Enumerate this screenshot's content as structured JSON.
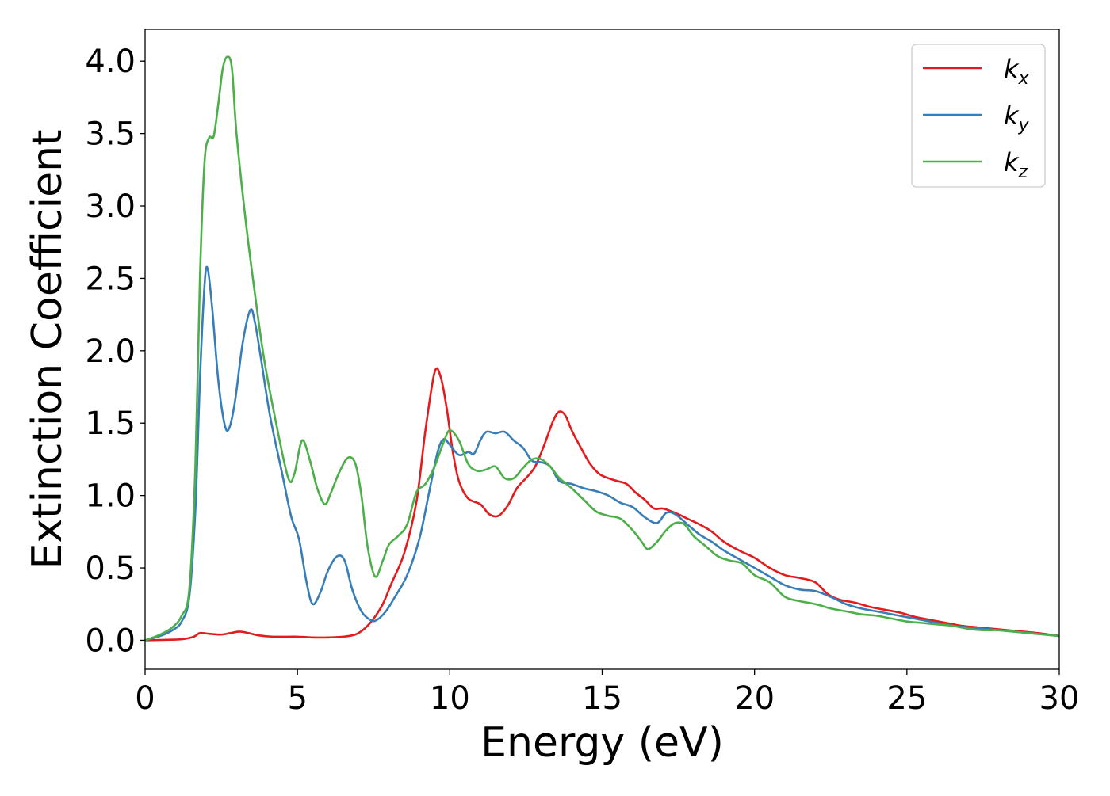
{
  "chart_data": {
    "type": "line",
    "title": "",
    "xlabel": "Energy (eV)",
    "ylabel": "Extinction Coefficient",
    "xlim": [
      0,
      30
    ],
    "ylim": [
      -0.2,
      4.22
    ],
    "xticks": [
      0,
      5,
      10,
      15,
      20,
      25,
      30
    ],
    "xtick_labels": [
      "0",
      "5",
      "10",
      "15",
      "20",
      "25",
      "30"
    ],
    "yticks": [
      0.0,
      0.5,
      1.0,
      1.5,
      2.0,
      2.5,
      3.0,
      3.5,
      4.0
    ],
    "ytick_labels": [
      "0.0",
      "0.5",
      "1.0",
      "1.5",
      "2.0",
      "2.5",
      "3.0",
      "3.5",
      "4.0"
    ],
    "grid": false,
    "legend_position": "top-right",
    "series": [
      {
        "name": "k",
        "subscript": "x",
        "color": "#e41a1c",
        "x": [
          0,
          1,
          1.3,
          1.6,
          1.8,
          2.1,
          2.5,
          2.8,
          3.1,
          3.4,
          3.7,
          4.2,
          5,
          5.5,
          6,
          6.5,
          6.9,
          7.2,
          7.5,
          7.8,
          8.1,
          8.5,
          8.9,
          9.2,
          9.5,
          9.7,
          9.9,
          10.1,
          10.3,
          10.6,
          11,
          11.3,
          11.6,
          11.9,
          12.2,
          12.5,
          12.8,
          13.1,
          13.4,
          13.6,
          13.8,
          14.0,
          14.3,
          14.6,
          14.9,
          15.2,
          15.5,
          15.8,
          16.1,
          16.4,
          16.7,
          17.0,
          17.4,
          17.8,
          18.2,
          18.6,
          19.0,
          19.5,
          20.0,
          20.5,
          21.0,
          21.5,
          22.0,
          22.4,
          22.8,
          23.3,
          23.8,
          24.3,
          24.8,
          25.3,
          25.8,
          26.3,
          26.8,
          27.3,
          27.8,
          28.3,
          28.8,
          29.3,
          30
        ],
        "y": [
          0.0,
          0.005,
          0.01,
          0.025,
          0.05,
          0.045,
          0.04,
          0.05,
          0.06,
          0.05,
          0.035,
          0.025,
          0.025,
          0.02,
          0.02,
          0.025,
          0.04,
          0.08,
          0.15,
          0.25,
          0.4,
          0.6,
          0.95,
          1.45,
          1.85,
          1.82,
          1.6,
          1.3,
          1.1,
          0.98,
          0.94,
          0.87,
          0.86,
          0.93,
          1.05,
          1.12,
          1.2,
          1.35,
          1.52,
          1.58,
          1.55,
          1.45,
          1.33,
          1.22,
          1.15,
          1.12,
          1.1,
          1.08,
          1.02,
          0.97,
          0.91,
          0.91,
          0.88,
          0.84,
          0.8,
          0.75,
          0.68,
          0.62,
          0.57,
          0.5,
          0.45,
          0.43,
          0.4,
          0.32,
          0.28,
          0.26,
          0.23,
          0.21,
          0.19,
          0.16,
          0.14,
          0.12,
          0.1,
          0.09,
          0.08,
          0.07,
          0.06,
          0.05,
          0.03
        ]
      },
      {
        "name": "k",
        "subscript": "y",
        "color": "#377eb8",
        "x": [
          0,
          0.5,
          0.9,
          1.2,
          1.45,
          1.65,
          1.8,
          1.95,
          2.05,
          2.2,
          2.4,
          2.6,
          2.75,
          2.95,
          3.2,
          3.45,
          3.6,
          3.8,
          4.1,
          4.5,
          4.8,
          5.05,
          5.3,
          5.5,
          5.75,
          6.0,
          6.3,
          6.55,
          6.8,
          7.1,
          7.4,
          7.6,
          7.9,
          8.2,
          8.6,
          9.0,
          9.3,
          9.6,
          9.8,
          10.0,
          10.3,
          10.6,
          10.8,
          11.0,
          11.2,
          11.5,
          11.8,
          12.1,
          12.4,
          12.7,
          13.0,
          13.3,
          13.6,
          14.0,
          14.4,
          14.8,
          15.2,
          15.6,
          16.0,
          16.4,
          16.8,
          17.1,
          17.4,
          17.8,
          18.2,
          18.6,
          19.0,
          19.5,
          20.0,
          20.5,
          21.0,
          21.5,
          22.0,
          22.5,
          23.0,
          23.5,
          24.0,
          24.5,
          25.0,
          25.5,
          26.0,
          26.5,
          27.0,
          27.5,
          28.0,
          28.5,
          29.0,
          29.5,
          30
        ],
        "y": [
          0.0,
          0.03,
          0.07,
          0.13,
          0.3,
          0.9,
          1.8,
          2.45,
          2.57,
          2.3,
          1.8,
          1.5,
          1.46,
          1.65,
          2.05,
          2.28,
          2.2,
          1.95,
          1.55,
          1.15,
          0.85,
          0.7,
          0.4,
          0.25,
          0.33,
          0.48,
          0.58,
          0.55,
          0.35,
          0.2,
          0.14,
          0.14,
          0.2,
          0.3,
          0.45,
          0.7,
          1.0,
          1.3,
          1.39,
          1.35,
          1.28,
          1.3,
          1.29,
          1.38,
          1.44,
          1.43,
          1.44,
          1.38,
          1.33,
          1.24,
          1.23,
          1.2,
          1.1,
          1.08,
          1.05,
          1.03,
          1.0,
          0.95,
          0.92,
          0.85,
          0.81,
          0.88,
          0.87,
          0.8,
          0.73,
          0.68,
          0.62,
          0.56,
          0.5,
          0.44,
          0.38,
          0.35,
          0.34,
          0.3,
          0.25,
          0.22,
          0.2,
          0.18,
          0.16,
          0.14,
          0.12,
          0.1,
          0.09,
          0.08,
          0.07,
          0.06,
          0.05,
          0.04,
          0.03
        ]
      },
      {
        "name": "k",
        "subscript": "z",
        "color": "#4daf4a",
        "x": [
          0,
          0.5,
          0.9,
          1.2,
          1.45,
          1.65,
          1.8,
          1.95,
          2.1,
          2.25,
          2.4,
          2.55,
          2.7,
          2.85,
          3.0,
          3.3,
          3.6,
          3.9,
          4.3,
          4.7,
          4.9,
          5.15,
          5.4,
          5.65,
          5.9,
          6.1,
          6.35,
          6.65,
          6.9,
          7.1,
          7.3,
          7.55,
          7.8,
          8.0,
          8.3,
          8.6,
          8.9,
          9.2,
          9.5,
          9.8,
          10.0,
          10.3,
          10.6,
          10.9,
          11.2,
          11.5,
          11.8,
          12.1,
          12.4,
          12.7,
          13.0,
          13.3,
          13.6,
          14.0,
          14.4,
          14.8,
          15.2,
          15.6,
          16.0,
          16.3,
          16.5,
          16.8,
          17.1,
          17.4,
          17.7,
          18.0,
          18.4,
          18.8,
          19.2,
          19.6,
          20.0,
          20.5,
          21.0,
          21.5,
          22.0,
          22.5,
          23.0,
          23.5,
          24.0,
          24.5,
          25.0,
          25.5,
          26.0,
          26.5,
          27.0,
          27.5,
          28.0,
          28.5,
          29.0,
          29.5,
          30
        ],
        "y": [
          0.0,
          0.04,
          0.09,
          0.17,
          0.35,
          1.2,
          2.5,
          3.3,
          3.47,
          3.48,
          3.7,
          3.95,
          4.03,
          3.95,
          3.5,
          2.9,
          2.4,
          1.95,
          1.5,
          1.12,
          1.15,
          1.38,
          1.25,
          1.05,
          0.94,
          1.02,
          1.15,
          1.26,
          1.22,
          1.0,
          0.65,
          0.44,
          0.55,
          0.66,
          0.72,
          0.8,
          1.02,
          1.08,
          1.2,
          1.37,
          1.45,
          1.38,
          1.22,
          1.17,
          1.18,
          1.2,
          1.12,
          1.12,
          1.19,
          1.25,
          1.25,
          1.2,
          1.12,
          1.05,
          0.97,
          0.89,
          0.86,
          0.84,
          0.76,
          0.68,
          0.63,
          0.68,
          0.76,
          0.81,
          0.8,
          0.72,
          0.65,
          0.58,
          0.55,
          0.53,
          0.45,
          0.4,
          0.3,
          0.27,
          0.25,
          0.22,
          0.2,
          0.18,
          0.17,
          0.15,
          0.13,
          0.12,
          0.11,
          0.1,
          0.08,
          0.07,
          0.07,
          0.06,
          0.05,
          0.04,
          0.03
        ]
      }
    ]
  }
}
